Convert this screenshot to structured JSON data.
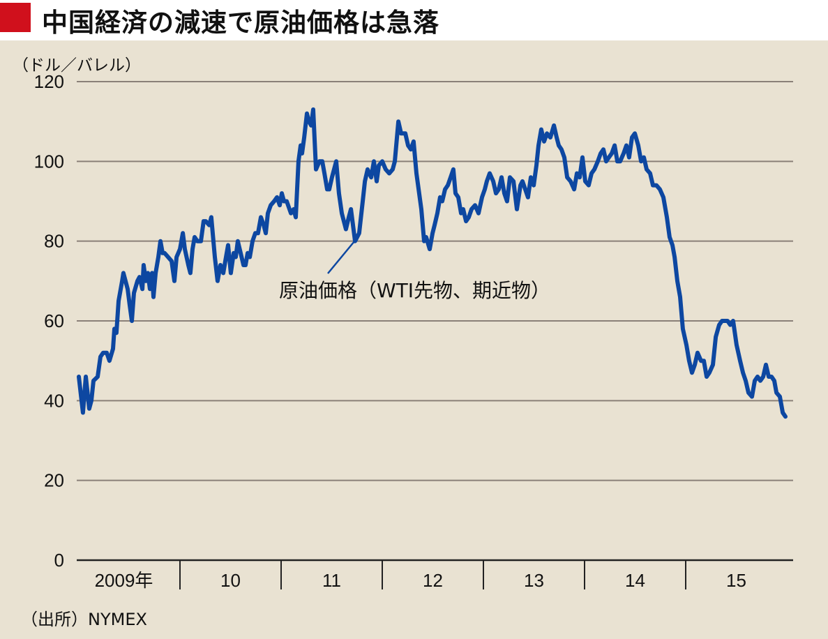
{
  "header": {
    "title": "中国経済の減速で原油価格は急落"
  },
  "source": "（出所）NYMEX",
  "colors": {
    "accent": "#d0101c",
    "line": "#0d47a1",
    "grid": "#8a8078",
    "background": "#e9e2d2"
  },
  "chart_data": {
    "type": "line",
    "title": "中国経済の減速で原油価格は急落",
    "ylabel": "（ドル／バレル）",
    "xlabel": "",
    "ylim": [
      0,
      120
    ],
    "yticks": [
      0,
      20,
      40,
      60,
      80,
      100,
      120
    ],
    "ytick_labels": [
      "0",
      "20",
      "40",
      "60",
      "80",
      "100",
      "120"
    ],
    "xlim": [
      2009,
      2016
    ],
    "xtick_labels": [
      "2009年",
      "10",
      "11",
      "12",
      "13",
      "14",
      "15"
    ],
    "grid": true,
    "annotation": "原油価格（WTI先物、期近物）",
    "series": [
      {
        "name": "原油価格（WTI先物、期近物）",
        "x": [
          2009.0,
          2009.041,
          2009.069,
          2009.103,
          2009.124,
          2009.145,
          2009.186,
          2009.214,
          2009.241,
          2009.276,
          2009.303,
          2009.338,
          2009.352,
          2009.372,
          2009.393,
          2009.428,
          2009.441,
          2009.483,
          2009.503,
          2009.524,
          2009.545,
          2009.579,
          2009.6,
          2009.628,
          2009.641,
          2009.662,
          2009.683,
          2009.703,
          2009.724,
          2009.738,
          2009.759,
          2009.786,
          2009.807,
          2009.828,
          2009.848,
          2009.883,
          2009.917,
          2009.945,
          2009.966,
          2010.0,
          2010.028,
          2010.048,
          2010.083,
          2010.103,
          2010.124,
          2010.145,
          2010.172,
          2010.207,
          2010.234,
          2010.255,
          2010.29,
          2010.31,
          2010.345,
          2010.372,
          2010.4,
          2010.428,
          2010.448,
          2010.476,
          2010.503,
          2010.531,
          2010.552,
          2010.572,
          2010.6,
          2010.628,
          2010.648,
          2010.669,
          2010.69,
          2010.717,
          2010.745,
          2010.772,
          2010.8,
          2010.828,
          2010.848,
          2010.869,
          2010.897,
          2010.931,
          2010.959,
          2010.986,
          2011.007,
          2011.028,
          2011.055,
          2011.097,
          2011.124,
          2011.145,
          2011.172,
          2011.193,
          2011.207,
          2011.228,
          2011.255,
          2011.276,
          2011.297,
          2011.317,
          2011.345,
          2011.379,
          2011.407,
          2011.428,
          2011.455,
          2011.476,
          2011.503,
          2011.545,
          2011.572,
          2011.6,
          2011.641,
          2011.669,
          2011.69,
          2011.731,
          2011.772,
          2011.807,
          2011.828,
          2011.855,
          2011.89,
          2011.917,
          2011.945,
          2011.966,
          2012.0,
          2012.034,
          2012.069,
          2012.103,
          2012.124,
          2012.159,
          2012.186,
          2012.228,
          2012.255,
          2012.283,
          2012.31,
          2012.338,
          2012.386,
          2012.414,
          2012.434,
          2012.469,
          2012.497,
          2012.517,
          2012.545,
          2012.572,
          2012.593,
          2012.621,
          2012.648,
          2012.676,
          2012.703,
          2012.724,
          2012.752,
          2012.779,
          2012.8,
          2012.828,
          2012.855,
          2012.883,
          2012.917,
          2012.952,
          2012.986,
          2013.014,
          2013.034,
          2013.062,
          2013.097,
          2013.124,
          2013.152,
          2013.179,
          2013.207,
          2013.234,
          2013.262,
          2013.297,
          2013.331,
          2013.366,
          2013.386,
          2013.414,
          2013.441,
          2013.469,
          2013.497,
          2013.524,
          2013.545,
          2013.572,
          2013.6,
          2013.628,
          2013.662,
          2013.697,
          2013.724,
          2013.745,
          2013.772,
          2013.8,
          2013.828,
          2013.862,
          2013.897,
          2013.924,
          2013.952,
          2013.979,
          2014.007,
          2014.041,
          2014.069,
          2014.097,
          2014.131,
          2014.159,
          2014.186,
          2014.214,
          2014.241,
          2014.269,
          2014.297,
          2014.324,
          2014.352,
          2014.386,
          2014.414,
          2014.441,
          2014.469,
          2014.497,
          2014.531,
          2014.559,
          2014.586,
          2014.614,
          2014.648,
          2014.676,
          2014.71,
          2014.745,
          2014.779,
          2014.814,
          2014.841,
          2014.869,
          2014.89,
          2014.917,
          2014.945,
          2014.972,
          2015.007,
          2015.034,
          2015.062,
          2015.09,
          2015.117,
          2015.152,
          2015.179,
          2015.207,
          2015.234,
          2015.269,
          2015.297,
          2015.331,
          2015.359,
          2015.386,
          2015.414,
          2015.441,
          2015.469,
          2015.503,
          2015.538,
          2015.566,
          2015.593,
          2015.621,
          2015.655,
          2015.683,
          2015.71,
          2015.738,
          2015.766,
          2015.793,
          2015.821,
          2015.848,
          2015.876,
          2015.897,
          2015.931,
          2015.959,
          2015.986
        ],
        "y": [
          46,
          37,
          46,
          38,
          40,
          45,
          46,
          51,
          52,
          52,
          50,
          53,
          58,
          57,
          65,
          70,
          72,
          68,
          64,
          60,
          67,
          70,
          71,
          68,
          74,
          70,
          72,
          68,
          72,
          66,
          72,
          76,
          80,
          77,
          77,
          76,
          75,
          70,
          76,
          78,
          82,
          78,
          74,
          72,
          78,
          81,
          80,
          80,
          85,
          85,
          84,
          86,
          76,
          70,
          74,
          72,
          75,
          79,
          72,
          77,
          76,
          80,
          77,
          74,
          74,
          77,
          76,
          80,
          82,
          82,
          86,
          84,
          82,
          87,
          89,
          90,
          91,
          89,
          92,
          90,
          90,
          87,
          88,
          86,
          100,
          104,
          102,
          106,
          112,
          110,
          109,
          113,
          98,
          100,
          100,
          97,
          93,
          93,
          96,
          100,
          92,
          87,
          83,
          86,
          88,
          80,
          82,
          90,
          95,
          98,
          96,
          100,
          95,
          99,
          100,
          98,
          97,
          98,
          100,
          110,
          107,
          107,
          104,
          103,
          105,
          97,
          88,
          80,
          81,
          78,
          82,
          84,
          87,
          91,
          90,
          93,
          94,
          96,
          98,
          92,
          91,
          87,
          88,
          85,
          86,
          88,
          89,
          87,
          91,
          93,
          95,
          97,
          95,
          92,
          93,
          96,
          92,
          90,
          96,
          95,
          88,
          94,
          95,
          93,
          91,
          96,
          94,
          99,
          104,
          108,
          105,
          107,
          106,
          109,
          106,
          104,
          103,
          101,
          96,
          95,
          93,
          97,
          96,
          101,
          95,
          94,
          97,
          98,
          100,
          102,
          103,
          100,
          101,
          102,
          104,
          100,
          100,
          102,
          104,
          101,
          106,
          107,
          104,
          100,
          101,
          98,
          97,
          94,
          94,
          93,
          91,
          86,
          81,
          79,
          76,
          70,
          66,
          58,
          54,
          50,
          47,
          49,
          52,
          50,
          50,
          46,
          47,
          49,
          56,
          59,
          60,
          60,
          60,
          59,
          60,
          54,
          50,
          47,
          45,
          42,
          41,
          45,
          46,
          45,
          46,
          49,
          46,
          46,
          45,
          42,
          41,
          37,
          36
        ]
      }
    ]
  }
}
